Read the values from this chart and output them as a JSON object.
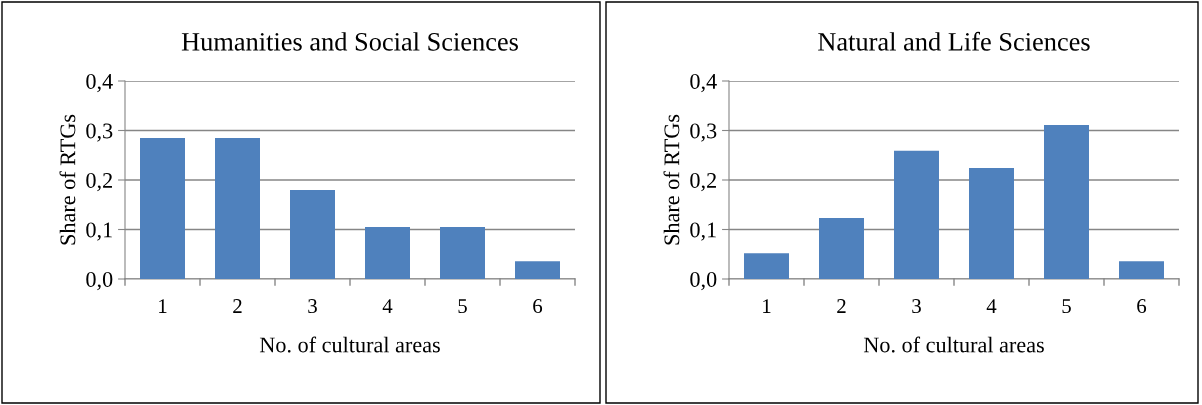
{
  "chart_data": [
    {
      "type": "bar",
      "title": "Humanities and Social Sciences",
      "xlabel": "No. of cultural areas",
      "ylabel": "Share of RTGs",
      "categories": [
        "1",
        "2",
        "3",
        "4",
        "5",
        "6"
      ],
      "values": [
        0.285,
        0.285,
        0.18,
        0.105,
        0.105,
        0.036
      ],
      "color": "#4f81bd",
      "ylim": [
        0,
        0.4
      ],
      "yticks": [
        {
          "value": 0,
          "label": "0,0"
        },
        {
          "value": 0.1,
          "label": "0,1"
        },
        {
          "value": 0.2,
          "label": "0,2"
        },
        {
          "value": 0.3,
          "label": "0,3"
        },
        {
          "value": 0.4,
          "label": "0,4"
        }
      ],
      "grid": "y",
      "legend": false
    },
    {
      "type": "bar",
      "title": "Natural and Life Sciences",
      "xlabel": "No. of cultural areas",
      "ylabel": "Share of RTGs",
      "categories": [
        "1",
        "2",
        "3",
        "4",
        "5",
        "6"
      ],
      "values": [
        0.052,
        0.123,
        0.259,
        0.224,
        0.311,
        0.036
      ],
      "color": "#4f81bd",
      "ylim": [
        0,
        0.4
      ],
      "yticks": [
        {
          "value": 0,
          "label": "0,0"
        },
        {
          "value": 0.1,
          "label": "0,1"
        },
        {
          "value": 0.2,
          "label": "0,2"
        },
        {
          "value": 0.3,
          "label": "0,3"
        },
        {
          "value": 0.4,
          "label": "0,4"
        }
      ],
      "grid": "y",
      "legend": false
    }
  ]
}
